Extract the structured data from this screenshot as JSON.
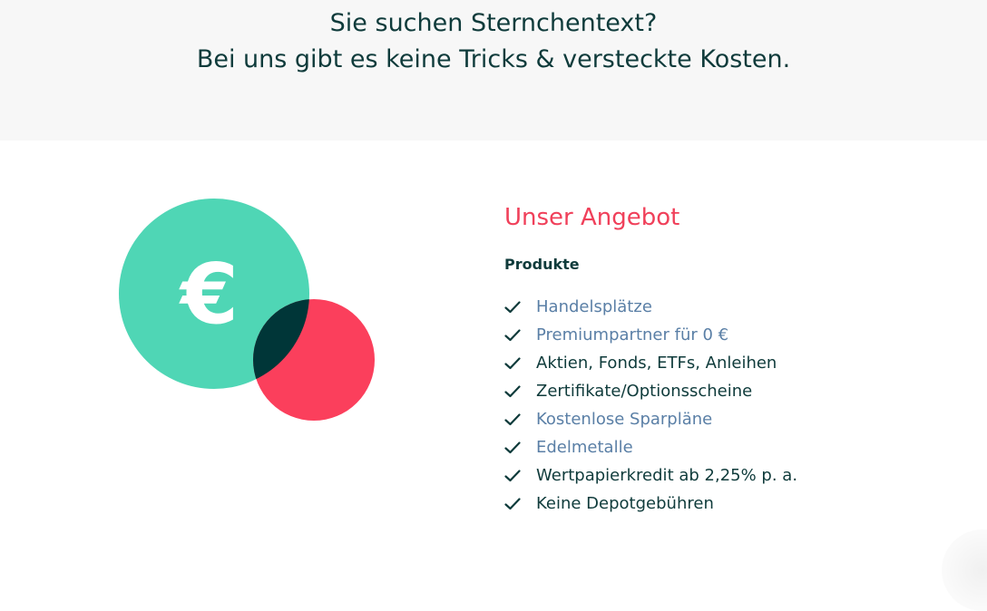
{
  "banner": {
    "line1": "Sie suchen Sternchentext?",
    "line2": "Bei uns gibt es keine Tricks & versteckte Kosten."
  },
  "illustration": {
    "symbol": "€",
    "icon": "euro-coin-icon",
    "colors": {
      "green": "#4fd6b5",
      "red": "#fb3f5c",
      "overlap": "#003638"
    }
  },
  "offer": {
    "title": "Unser Angebot",
    "subtitle": "Produkte",
    "items": [
      {
        "label": "Handelsplätze",
        "link": true
      },
      {
        "label": "Premiumpartner für 0 €",
        "link": true
      },
      {
        "label": "Aktien, Fonds, ETFs, Anleihen",
        "link": false
      },
      {
        "label": "Zertifikate/Optionsscheine",
        "link": false
      },
      {
        "label": "Kostenlose Sparpläne",
        "link": true
      },
      {
        "label": "Edelmetalle",
        "link": true
      },
      {
        "label": "Wertpapierkredit ab 2,25% p. a.",
        "link": false
      },
      {
        "label": "Keine Depotgebühren",
        "link": false
      }
    ]
  },
  "colors": {
    "text": "#0f3b3b",
    "accent": "#f0405a",
    "link": "#5a7fa6",
    "banner_bg": "#f7f7f7"
  }
}
